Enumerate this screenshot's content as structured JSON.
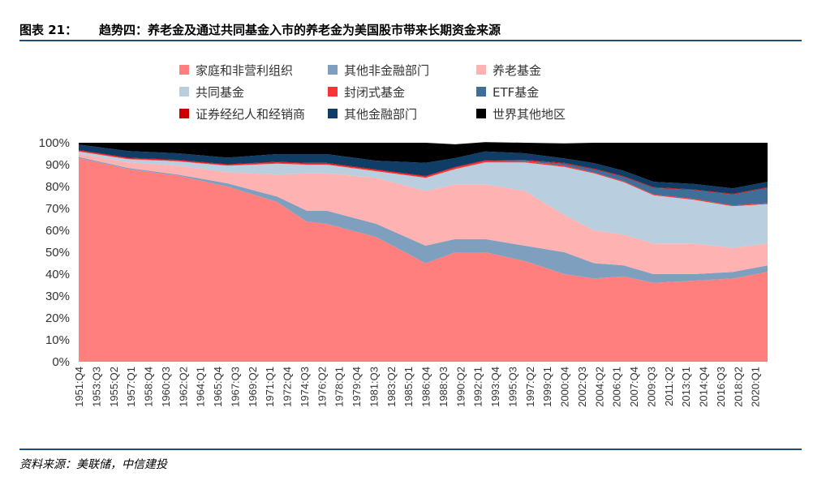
{
  "header": {
    "figure_label": "图表 21：",
    "title": "趋势四：养老金及通过共同基金入市的养老金为美国股市带来长期资金来源"
  },
  "footer": {
    "source": "资料来源：美联储，中信建投"
  },
  "chart_data": {
    "type": "area",
    "stacked": true,
    "ylim": [
      0,
      100
    ],
    "yticks": [
      "0%",
      "10%",
      "20%",
      "30%",
      "40%",
      "50%",
      "60%",
      "70%",
      "80%",
      "90%",
      "100%"
    ],
    "x_ticklabels": [
      "1951:Q4",
      "1953:Q3",
      "1955:Q2",
      "1957:Q1",
      "1958:Q4",
      "1960:Q3",
      "1962:Q2",
      "1964:Q1",
      "1965:Q4",
      "1967:Q3",
      "1969:Q2",
      "1971:Q1",
      "1972:Q4",
      "1974:Q3",
      "1976:Q2",
      "1978:Q1",
      "1979:Q4",
      "1981:Q3",
      "1983:Q2",
      "1985:Q1",
      "1986:Q4",
      "1988:Q3",
      "1990:Q2",
      "1992:Q1",
      "1993:Q4",
      "1995:Q3",
      "1997:Q2",
      "1999:Q1",
      "2000:Q4",
      "2002:Q3",
      "2004:Q2",
      "2006:Q1",
      "2007:Q4",
      "2009:Q3",
      "2011:Q2",
      "2013:Q1",
      "2014:Q4",
      "2016:Q3",
      "2018:Q2",
      "2020:Q1"
    ],
    "x": [
      "1951:Q4",
      "1956:Q4",
      "1961:Q4",
      "1966:Q4",
      "1971:Q4",
      "1974:Q4",
      "1976:Q4",
      "1981:Q4",
      "1986:Q4",
      "1989:Q4",
      "1992:Q4",
      "1996:Q4",
      "2000:Q4",
      "2003:Q4",
      "2006:Q4",
      "2009:Q4",
      "2013:Q4",
      "2017:Q4",
      "2021:Q2"
    ],
    "series": [
      {
        "name": "家庭和非营利组织",
        "color": "#ff7f7f",
        "values": [
          93,
          88,
          85,
          80,
          73,
          64,
          63,
          57,
          45,
          50,
          50,
          46,
          40,
          38,
          39,
          36,
          37,
          38,
          41
        ]
      },
      {
        "name": "其他非金融部门",
        "color": "#7f9fbf",
        "values": [
          0.5,
          0.5,
          0.5,
          1.5,
          2.5,
          5,
          6,
          6,
          8,
          6,
          6,
          7,
          10,
          7,
          5,
          4,
          3,
          3,
          3
        ]
      },
      {
        "name": "养老基金",
        "color": "#ffb2b2",
        "values": [
          1.5,
          2.5,
          4,
          5,
          10,
          17,
          17,
          21,
          25,
          25,
          25,
          25,
          17,
          15,
          14,
          14,
          14,
          11,
          10
        ]
      },
      {
        "name": "共同基金",
        "color": "#b9cedf",
        "values": [
          1,
          1.5,
          2,
          3,
          5,
          4,
          4,
          3,
          6,
          7,
          10,
          13,
          22,
          26,
          24,
          22,
          20,
          19,
          18
        ]
      },
      {
        "name": "封闭式基金",
        "color": "#ff3333",
        "values": [
          0.4,
          0.4,
          0.4,
          0.4,
          0.5,
          0.5,
          0.5,
          0.5,
          0.5,
          0.7,
          0.7,
          0.6,
          0.5,
          0.4,
          0.4,
          0.4,
          0.4,
          0.4,
          0.4
        ]
      },
      {
        "name": "ETF基金",
        "color": "#3f6f98",
        "values": [
          0,
          0,
          0,
          0,
          0,
          0,
          0,
          0,
          0,
          0,
          0,
          0.3,
          1,
          1.5,
          2,
          3,
          4,
          5,
          7
        ]
      },
      {
        "name": "证券经纪人和经销商",
        "color": "#cc0000",
        "values": [
          0.3,
          0.3,
          0.3,
          0.3,
          0.3,
          0.3,
          0.3,
          0.3,
          0.3,
          0.3,
          0.3,
          0.3,
          0.3,
          0.3,
          0.3,
          0.3,
          0.3,
          0.3,
          0.3
        ]
      },
      {
        "name": "其他金融部门",
        "color": "#0f3d66",
        "values": [
          2.5,
          3,
          3,
          3,
          3.5,
          4,
          4,
          4,
          6,
          4,
          4,
          3,
          2,
          2.5,
          2.5,
          2.5,
          2.5,
          2.5,
          2.5
        ]
      },
      {
        "name": "世界其他地区",
        "color": "#000000",
        "values": [
          0.8,
          3.8,
          4.8,
          6.8,
          5.2,
          5.2,
          5.2,
          8.2,
          9.2,
          6.3,
          4.3,
          4.8,
          6.9,
          9.3,
          12.8,
          17.8,
          18.8,
          20.8,
          17.8
        ]
      }
    ],
    "legend_position": "top",
    "grid": false
  }
}
